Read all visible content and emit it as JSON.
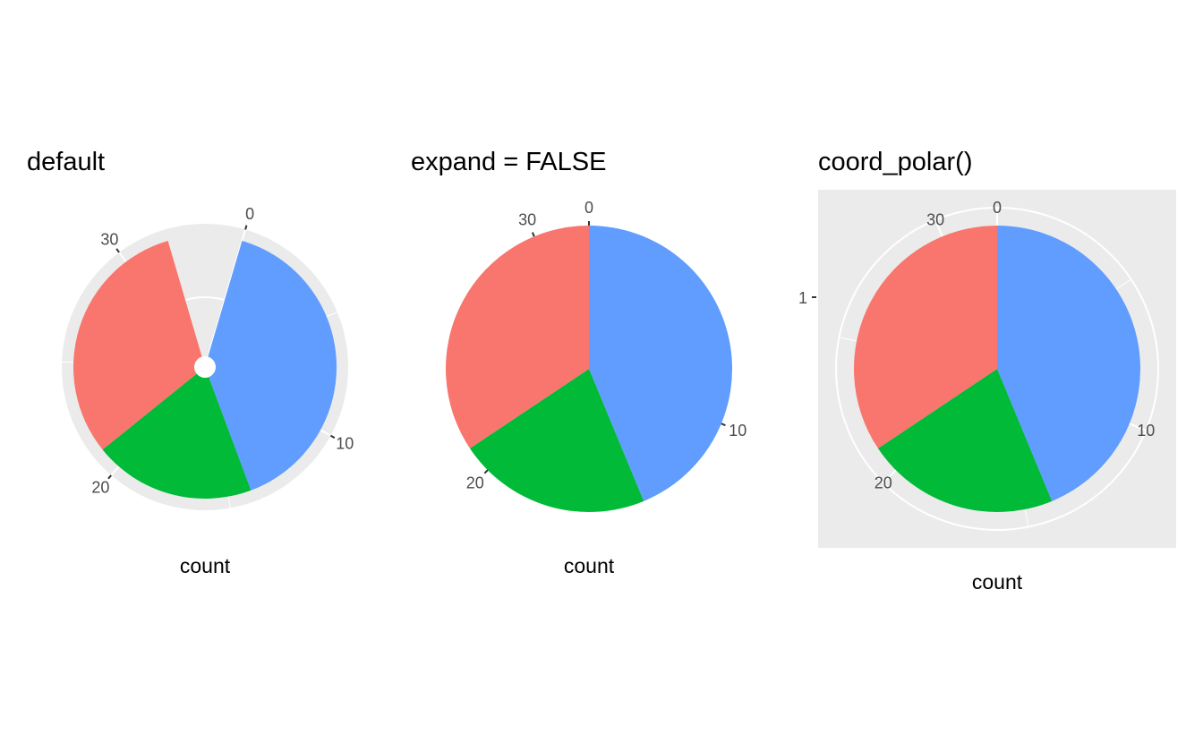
{
  "chart_data": [
    {
      "type": "pie",
      "title": "default",
      "xlabel": "count",
      "values": [
        14,
        7,
        11
      ],
      "colors": [
        "#619CFF",
        "#00BA38",
        "#F8766D"
      ],
      "theta_ticks": [
        0,
        10,
        20,
        30
      ],
      "theta_range": [
        -1.6,
        33.6
      ],
      "r_ticks": [],
      "panel_background": "#EBEBEB",
      "grid": true
    },
    {
      "type": "pie",
      "title": "expand = FALSE",
      "xlabel": "count",
      "values": [
        14,
        7,
        11
      ],
      "colors": [
        "#619CFF",
        "#00BA38",
        "#F8766D"
      ],
      "theta_ticks": [
        0,
        10,
        20,
        30
      ],
      "theta_range": [
        0,
        32
      ],
      "r_ticks": [],
      "grid": false
    },
    {
      "type": "pie",
      "title": "coord_polar()",
      "xlabel": "count",
      "values": [
        14,
        7,
        11
      ],
      "colors": [
        "#619CFF",
        "#00BA38",
        "#F8766D"
      ],
      "theta_ticks": [
        0,
        10,
        20,
        30
      ],
      "theta_range": [
        0,
        32
      ],
      "r_ticks": [
        "1"
      ],
      "panel_background": "#EBEBEB",
      "grid": true
    }
  ]
}
